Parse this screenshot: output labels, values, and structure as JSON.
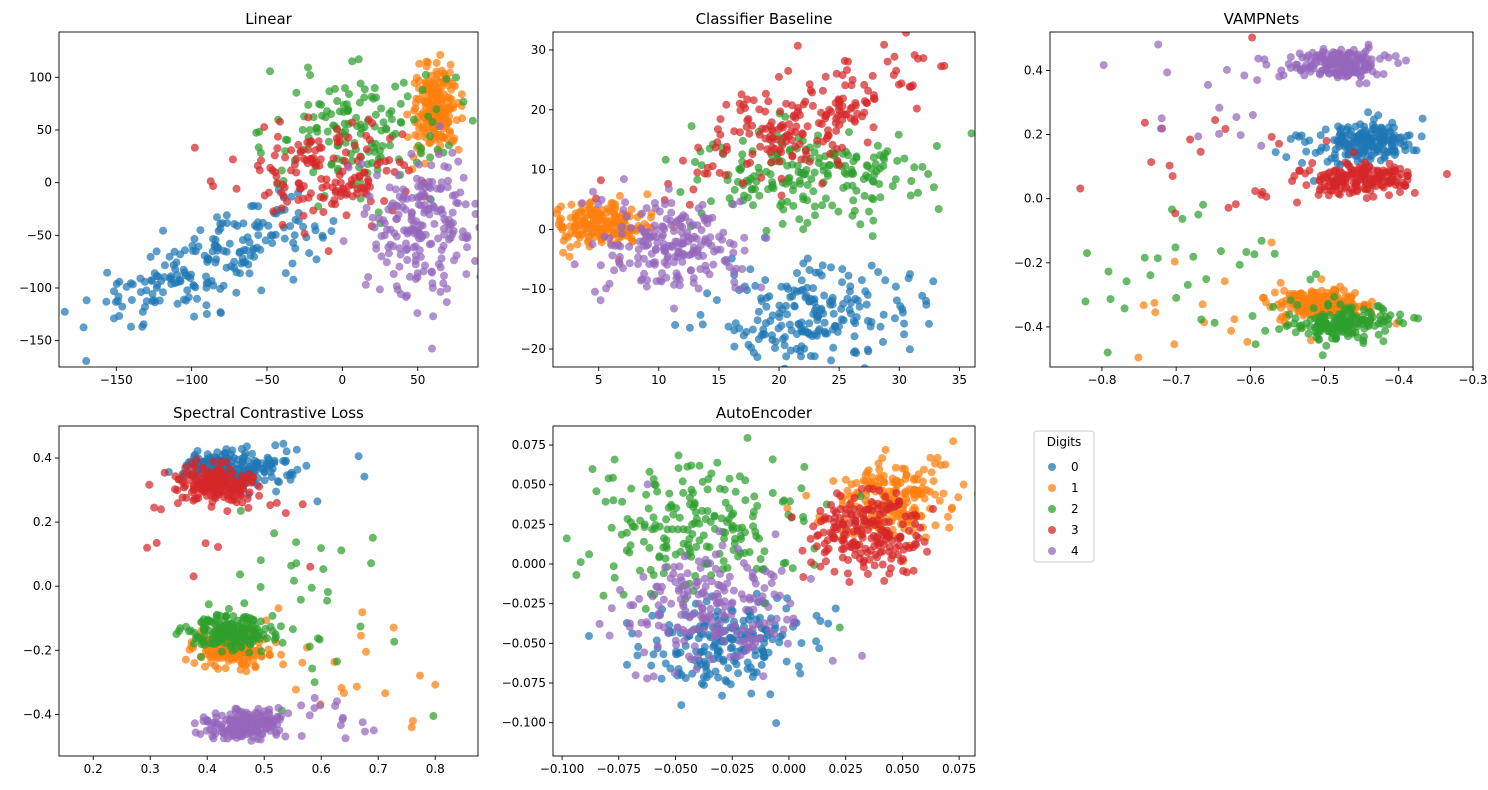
{
  "colors": {
    "0": "#1f77b4",
    "1": "#ff7f0e",
    "2": "#2ca02c",
    "3": "#d62728",
    "4": "#9467bd"
  },
  "legend": {
    "title": "Digits",
    "entries": [
      "0",
      "1",
      "2",
      "3",
      "4"
    ]
  },
  "chart_data": [
    {
      "type": "scatter",
      "title": "Linear",
      "xlim": [
        -188,
        90
      ],
      "ylim": [
        -175,
        143
      ],
      "xticks": [
        -150,
        -100,
        -50,
        0,
        50
      ],
      "yticks": [
        -150,
        -100,
        -50,
        0,
        50,
        100
      ],
      "xtick_labels": [
        "−150",
        "−100",
        "−50",
        "0",
        "50"
      ],
      "ytick_labels": [
        "−150",
        "−100",
        "−50",
        "0",
        "50",
        "100"
      ],
      "series": [
        {
          "name": "0",
          "clusters": [
            {
              "cx": -100,
              "cy": -85,
              "sx": 35,
              "sy": 25,
              "n": 150,
              "rho": 0.7
            },
            {
              "cx": -50,
              "cy": -45,
              "sx": 20,
              "sy": 15,
              "n": 50
            }
          ]
        },
        {
          "name": "1",
          "clusters": [
            {
              "cx": 62,
              "cy": 70,
              "sx": 8,
              "sy": 20,
              "n": 200
            }
          ]
        },
        {
          "name": "2",
          "clusters": [
            {
              "cx": 10,
              "cy": 50,
              "sx": 30,
              "sy": 30,
              "n": 150
            }
          ]
        },
        {
          "name": "3",
          "clusters": [
            {
              "cx": -10,
              "cy": 10,
              "sx": 30,
              "sy": 25,
              "n": 150
            }
          ]
        },
        {
          "name": "4",
          "clusters": [
            {
              "cx": 55,
              "cy": -40,
              "sx": 17,
              "sy": 35,
              "n": 200
            }
          ]
        }
      ]
    },
    {
      "type": "scatter",
      "title": "Classifier Baseline",
      "xlim": [
        1.2,
        36.3
      ],
      "ylim": [
        -23,
        33
      ],
      "xticks": [
        5,
        10,
        15,
        20,
        25,
        30,
        35
      ],
      "yticks": [
        -20,
        -10,
        0,
        10,
        20,
        30
      ],
      "xtick_labels": [
        "5",
        "10",
        "15",
        "20",
        "25",
        "30",
        "35"
      ],
      "ytick_labels": [
        "−20",
        "−10",
        "0",
        "10",
        "20",
        "30"
      ],
      "series": [
        {
          "name": "0",
          "clusters": [
            {
              "cx": 23,
              "cy": -14,
              "sx": 4,
              "sy": 4,
              "n": 200
            }
          ]
        },
        {
          "name": "1",
          "clusters": [
            {
              "cx": 5,
              "cy": 1,
              "sx": 2,
              "sy": 2,
              "n": 200
            }
          ]
        },
        {
          "name": "2",
          "clusters": [
            {
              "cx": 23,
              "cy": 9,
              "sx": 5,
              "sy": 4,
              "n": 200
            }
          ]
        },
        {
          "name": "3",
          "clusters": [
            {
              "cx": 22,
              "cy": 18,
              "sx": 5,
              "sy": 5,
              "n": 200,
              "rho": 0.6
            }
          ]
        },
        {
          "name": "4",
          "clusters": [
            {
              "cx": 11,
              "cy": -3,
              "sx": 3,
              "sy": 4,
              "n": 200
            }
          ]
        }
      ]
    },
    {
      "type": "scatter",
      "title": "VAMPNets",
      "xlim": [
        -0.87,
        -0.3
      ],
      "ylim": [
        -0.525,
        0.52
      ],
      "xticks": [
        -0.8,
        -0.7,
        -0.6,
        -0.5,
        -0.4,
        -0.3
      ],
      "yticks": [
        -0.4,
        -0.2,
        0.0,
        0.2,
        0.4
      ],
      "xtick_labels": [
        "−0.8",
        "−0.7",
        "−0.6",
        "−0.5",
        "−0.4",
        "−0.3"
      ],
      "ytick_labels": [
        "−0.4",
        "−0.2",
        "0.0",
        "0.2",
        "0.4"
      ],
      "series": [
        {
          "name": "0",
          "clusters": [
            {
              "cx": -0.44,
              "cy": 0.18,
              "sx": 0.03,
              "sy": 0.03,
              "n": 180
            },
            {
              "cx": -0.52,
              "cy": 0.15,
              "sx": 0.04,
              "sy": 0.04,
              "n": 20
            }
          ]
        },
        {
          "name": "1",
          "clusters": [
            {
              "cx": -0.5,
              "cy": -0.33,
              "sx": 0.03,
              "sy": 0.025,
              "n": 180
            },
            {
              "cx": -0.62,
              "cy": -0.35,
              "sx": 0.08,
              "sy": 0.08,
              "n": 20
            }
          ]
        },
        {
          "name": "2",
          "clusters": [
            {
              "cx": -0.48,
              "cy": -0.39,
              "sx": 0.04,
              "sy": 0.03,
              "n": 170
            },
            {
              "cx": -0.68,
              "cy": -0.25,
              "sx": 0.07,
              "sy": 0.12,
              "n": 30
            }
          ]
        },
        {
          "name": "3",
          "clusters": [
            {
              "cx": -0.45,
              "cy": 0.06,
              "sx": 0.04,
              "sy": 0.025,
              "n": 180
            },
            {
              "cx": -0.65,
              "cy": 0.1,
              "sx": 0.08,
              "sy": 0.12,
              "n": 20
            }
          ]
        },
        {
          "name": "4",
          "clusters": [
            {
              "cx": -0.48,
              "cy": 0.42,
              "sx": 0.03,
              "sy": 0.025,
              "n": 180
            },
            {
              "cx": -0.65,
              "cy": 0.35,
              "sx": 0.08,
              "sy": 0.08,
              "n": 20
            }
          ]
        }
      ]
    },
    {
      "type": "scatter",
      "title": "Spectral Contrastive Loss",
      "xlim": [
        0.14,
        0.875
      ],
      "ylim": [
        -0.53,
        0.5
      ],
      "xticks": [
        0.2,
        0.3,
        0.4,
        0.5,
        0.6,
        0.7,
        0.8
      ],
      "yticks": [
        -0.4,
        -0.2,
        0.0,
        0.2,
        0.4
      ],
      "xtick_labels": [
        "0.2",
        "0.3",
        "0.4",
        "0.5",
        "0.6",
        "0.7",
        "0.8"
      ],
      "ytick_labels": [
        "−0.4",
        "−0.2",
        "0.0",
        "0.2",
        "0.4"
      ],
      "series": [
        {
          "name": "0",
          "clusters": [
            {
              "cx": 0.44,
              "cy": 0.37,
              "sx": 0.04,
              "sy": 0.03,
              "n": 180
            },
            {
              "cx": 0.55,
              "cy": 0.35,
              "sx": 0.07,
              "sy": 0.05,
              "n": 20
            }
          ]
        },
        {
          "name": "1",
          "clusters": [
            {
              "cx": 0.44,
              "cy": -0.19,
              "sx": 0.03,
              "sy": 0.03,
              "n": 180
            },
            {
              "cx": 0.62,
              "cy": -0.22,
              "sx": 0.1,
              "sy": 0.1,
              "n": 20
            }
          ]
        },
        {
          "name": "2",
          "clusters": [
            {
              "cx": 0.44,
              "cy": -0.14,
              "sx": 0.04,
              "sy": 0.03,
              "n": 170
            },
            {
              "cx": 0.6,
              "cy": -0.05,
              "sx": 0.08,
              "sy": 0.15,
              "n": 30
            }
          ]
        },
        {
          "name": "3",
          "clusters": [
            {
              "cx": 0.41,
              "cy": 0.32,
              "sx": 0.035,
              "sy": 0.03,
              "n": 180
            },
            {
              "cx": 0.45,
              "cy": 0.25,
              "sx": 0.1,
              "sy": 0.08,
              "n": 20
            }
          ]
        },
        {
          "name": "4",
          "clusters": [
            {
              "cx": 0.47,
              "cy": -0.43,
              "sx": 0.035,
              "sy": 0.025,
              "n": 180
            },
            {
              "cx": 0.55,
              "cy": -0.4,
              "sx": 0.07,
              "sy": 0.04,
              "n": 20
            }
          ]
        }
      ]
    },
    {
      "type": "scatter",
      "title": "AutoEncoder",
      "xlim": [
        -0.104,
        0.082
      ],
      "ylim": [
        -0.121,
        0.087
      ],
      "xticks": [
        -0.1,
        -0.075,
        -0.05,
        -0.025,
        0.0,
        0.025,
        0.05,
        0.075
      ],
      "yticks": [
        -0.1,
        -0.075,
        -0.05,
        -0.025,
        0.0,
        0.025,
        0.05,
        0.075
      ],
      "xtick_labels": [
        "−0.100",
        "−0.075",
        "−0.050",
        "−0.025",
        "0.000",
        "0.025",
        "0.050",
        "0.075"
      ],
      "ytick_labels": [
        "−0.100",
        "−0.075",
        "−0.050",
        "−0.025",
        "0.000",
        "0.025",
        "0.050",
        "0.075"
      ],
      "series": [
        {
          "name": "0",
          "clusters": [
            {
              "cx": -0.027,
              "cy": -0.05,
              "sx": 0.018,
              "sy": 0.015,
              "n": 200
            }
          ]
        },
        {
          "name": "1",
          "clusters": [
            {
              "cx": 0.045,
              "cy": 0.04,
              "sx": 0.013,
              "sy": 0.013,
              "n": 200
            }
          ]
        },
        {
          "name": "2",
          "clusters": [
            {
              "cx": -0.04,
              "cy": 0.025,
              "sx": 0.025,
              "sy": 0.022,
              "n": 200
            }
          ]
        },
        {
          "name": "3",
          "clusters": [
            {
              "cx": 0.033,
              "cy": 0.02,
              "sx": 0.013,
              "sy": 0.013,
              "n": 200
            }
          ]
        },
        {
          "name": "4",
          "clusters": [
            {
              "cx": -0.035,
              "cy": -0.03,
              "sx": 0.02,
              "sy": 0.018,
              "n": 200
            }
          ]
        }
      ]
    }
  ]
}
